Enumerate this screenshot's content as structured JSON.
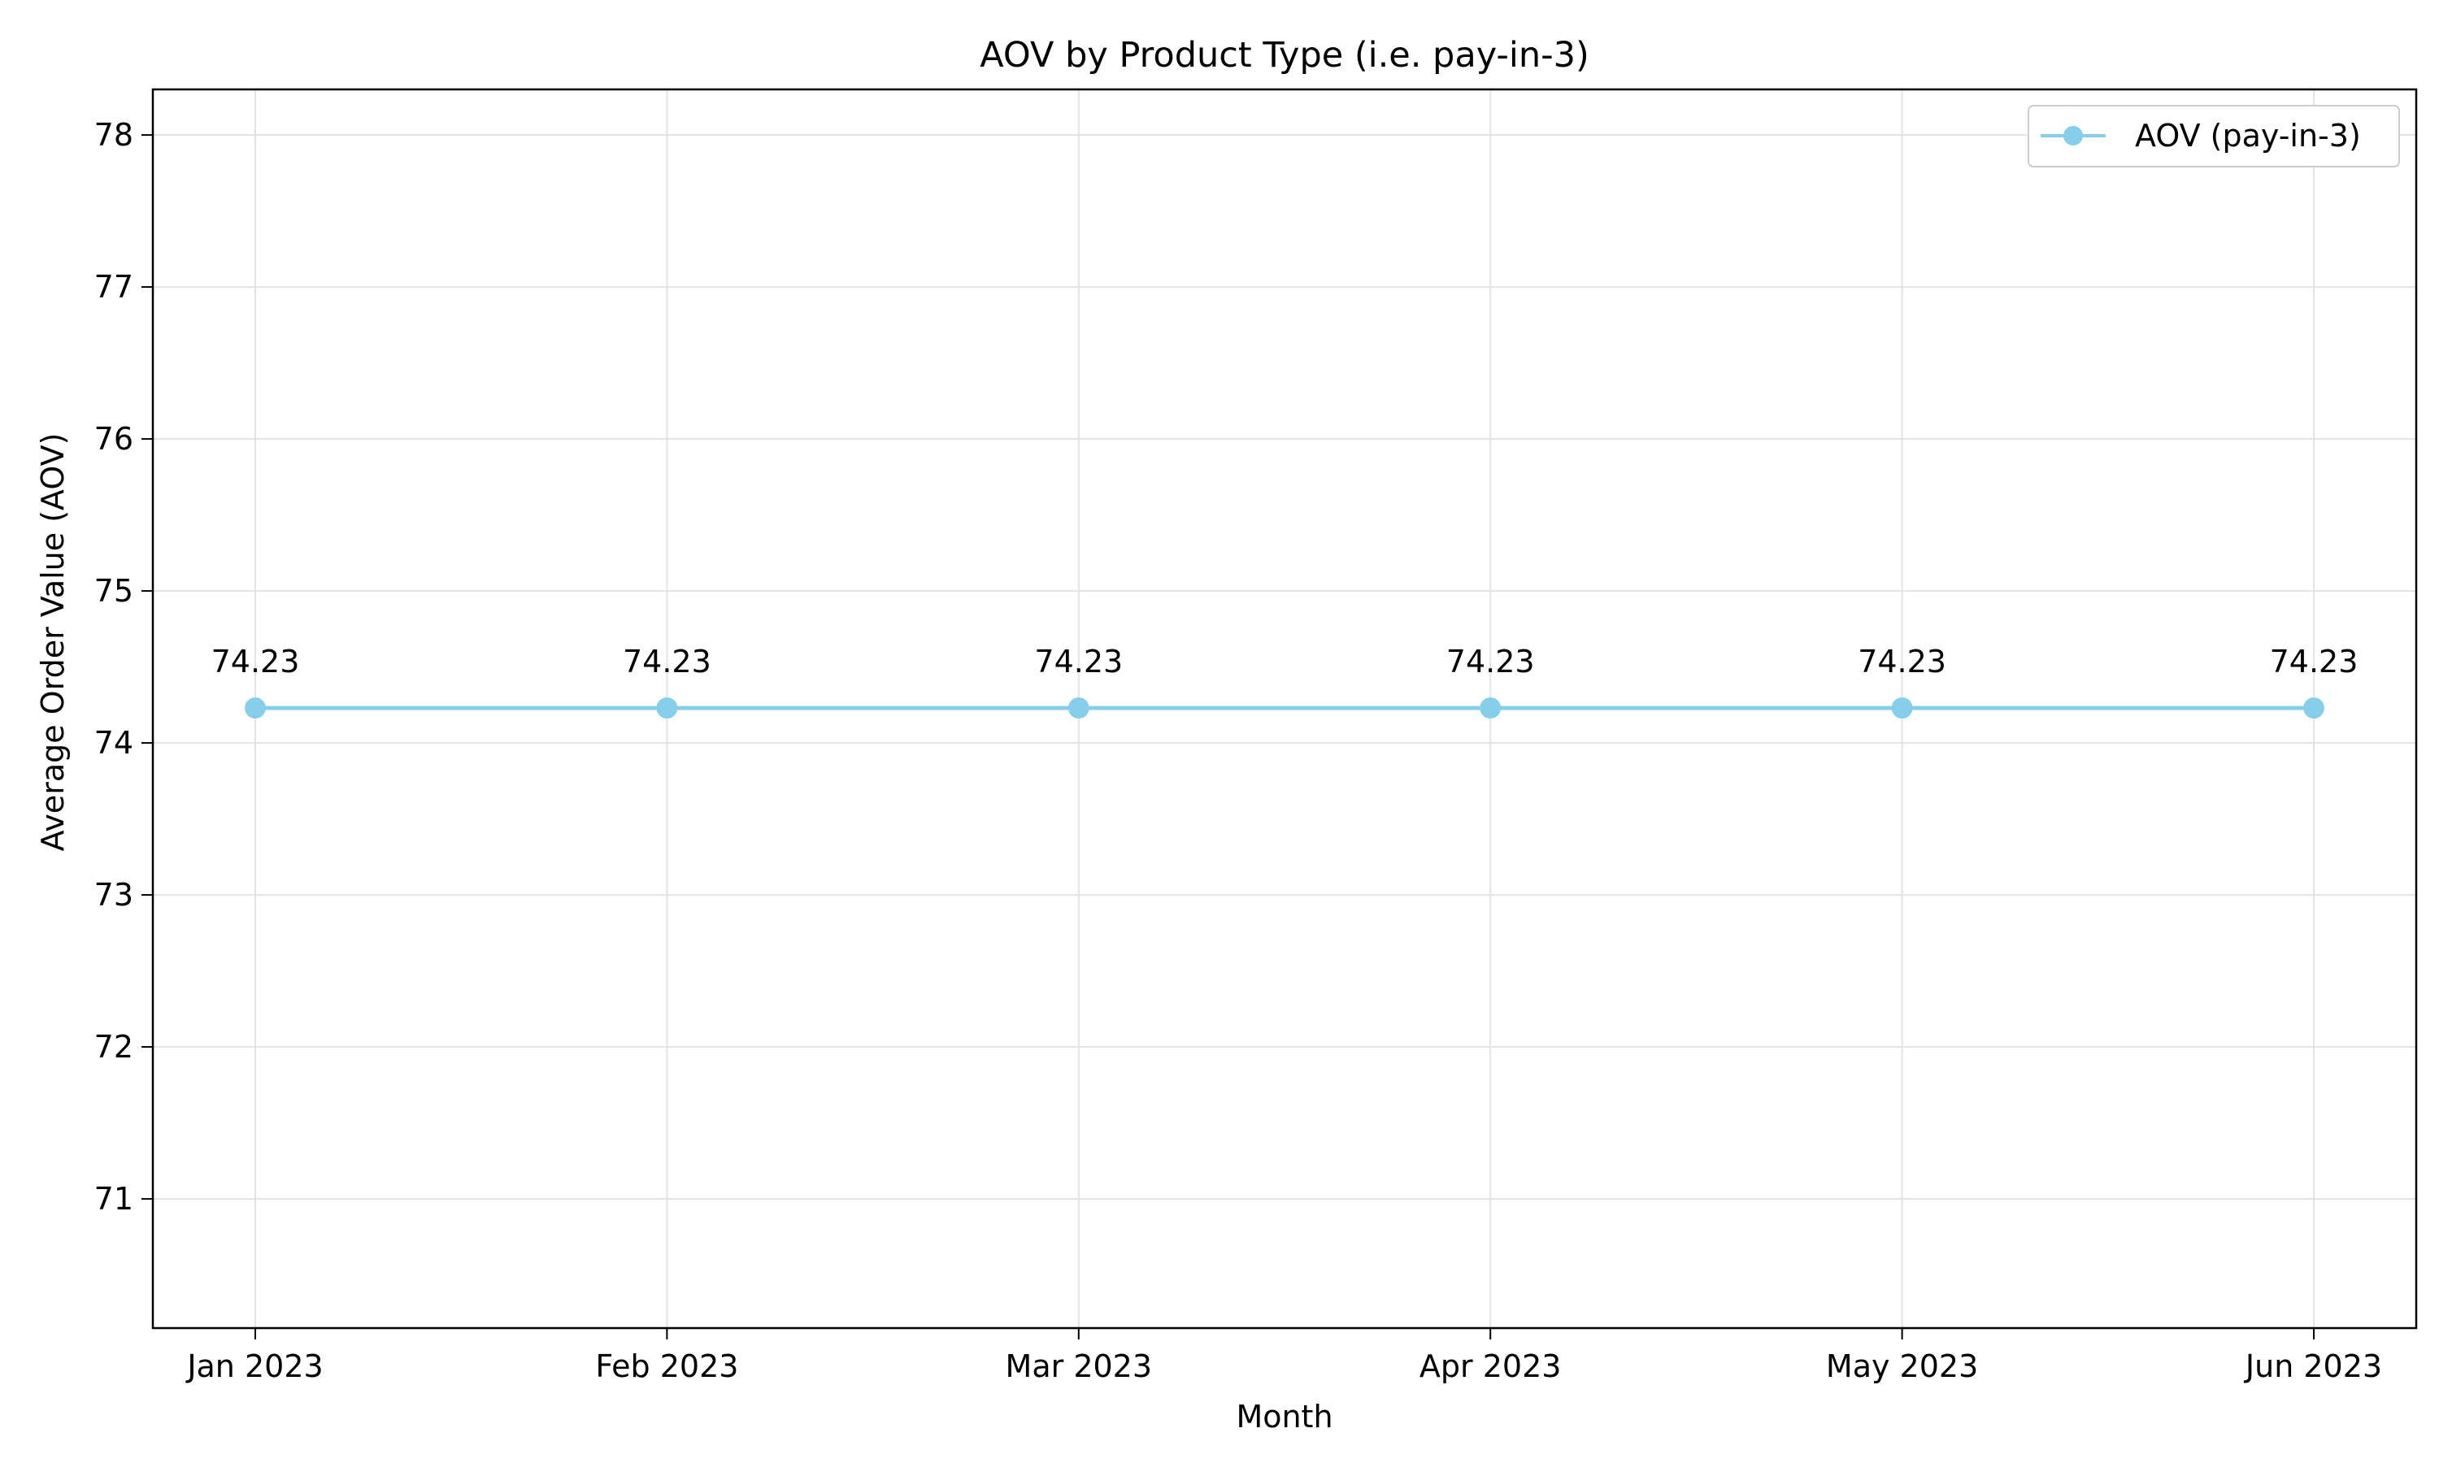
{
  "chart_data": {
    "type": "line",
    "title": "AOV by Product Type (i.e. pay-in-3)",
    "xlabel": "Month",
    "ylabel": "Average Order Value (AOV)",
    "categories": [
      "Jan 2023",
      "Feb 2023",
      "Mar 2023",
      "Apr 2023",
      "May 2023",
      "Jun 2023"
    ],
    "series": [
      {
        "name": "AOV (pay-in-3)",
        "values": [
          74.23,
          74.23,
          74.23,
          74.23,
          74.23,
          74.23
        ],
        "labels": [
          "74.23",
          "74.23",
          "74.23",
          "74.23",
          "74.23",
          "74.23"
        ],
        "color": "#87CEEB"
      }
    ],
    "yticks": [
      "71",
      "72",
      "73",
      "74",
      "75",
      "76",
      "77",
      "78"
    ],
    "ylim": [
      70.15,
      78.3
    ],
    "grid": true,
    "legend_position": "top-right"
  }
}
